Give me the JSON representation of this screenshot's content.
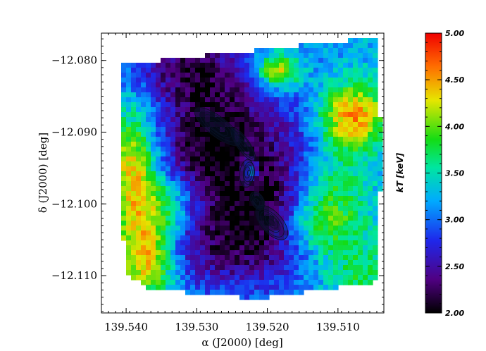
{
  "chart_data": {
    "type": "heatmap",
    "title": "",
    "xlabel": "α (J2000) [deg]",
    "ylabel": "δ (J2000) [deg]",
    "xlim": [
      139.5435,
      139.5035
    ],
    "ylim": [
      -12.1152,
      -12.0762
    ],
    "x_ticks": [
      139.54,
      139.53,
      139.52,
      139.51
    ],
    "x_tick_labels": [
      "139.540",
      "139.530",
      "139.520",
      "139.510"
    ],
    "y_ticks": [
      -12.08,
      -12.09,
      -12.1,
      -12.11
    ],
    "y_tick_labels": [
      "−12.080",
      "−12.090",
      "−12.100",
      "−12.110"
    ],
    "colorbar": {
      "label": "kT [keV]",
      "range": [
        2.0,
        5.0
      ],
      "ticks": [
        5.0,
        4.5,
        4.0,
        3.5,
        3.0,
        2.5,
        2.0
      ],
      "tick_labels": [
        "5.00",
        "4.50",
        "4.00",
        "3.50",
        "3.00",
        "2.50",
        "2.00"
      ],
      "colormap": "rainbow (black-purple-blue-cyan-green-yellow-red)"
    },
    "field_polygon": [
      [
        139.5404,
        -12.0805
      ],
      [
        139.5046,
        -12.0768
      ],
      [
        139.5039,
        -12.0913
      ],
      [
        139.5043,
        -12.1108
      ],
      [
        139.5216,
        -12.1132
      ],
      [
        139.5368,
        -12.1118
      ],
      [
        139.5402,
        -12.1095
      ],
      [
        139.5407,
        -12.0955
      ]
    ],
    "temperature_regions": [
      {
        "ra": 139.52,
        "dec": -12.095,
        "kT": 2.6,
        "sigma_ra": 0.01,
        "sigma_dec": 0.01
      },
      {
        "ra": 139.5285,
        "dec": -12.0905,
        "kT": 2.4,
        "sigma_ra": 0.0055,
        "sigma_dec": 0.009
      },
      {
        "ra": 139.519,
        "dec": -12.102,
        "kT": 2.5,
        "sigma_ra": 0.004,
        "sigma_dec": 0.005
      },
      {
        "ra": 139.533,
        "dec": -12.081,
        "kT": 2.7,
        "sigma_ra": 0.006,
        "sigma_dec": 0.003
      },
      {
        "ra": 139.528,
        "dec": -12.107,
        "kT": 2.7,
        "sigma_ra": 0.007,
        "sigma_dec": 0.004
      },
      {
        "ra": 139.539,
        "dec": -12.0955,
        "kT": 4.5,
        "sigma_ra": 0.0025,
        "sigma_dec": 0.006
      },
      {
        "ra": 139.537,
        "dec": -12.1075,
        "kT": 4.6,
        "sigma_ra": 0.003,
        "sigma_dec": 0.004
      },
      {
        "ra": 139.508,
        "dec": -12.088,
        "kT": 4.8,
        "sigma_ra": 0.0035,
        "sigma_dec": 0.0035
      },
      {
        "ra": 139.5185,
        "dec": -12.0815,
        "kT": 4.6,
        "sigma_ra": 0.0022,
        "sigma_dec": 0.0018
      },
      {
        "ra": 139.513,
        "dec": -12.103,
        "kT": 4.3,
        "sigma_ra": 0.005,
        "sigma_dec": 0.003
      },
      {
        "ra": 139.511,
        "dec": -12.097,
        "kT": 4.0,
        "sigma_ra": 0.004,
        "sigma_dec": 0.003
      },
      {
        "ra": 139.534,
        "dec": -12.1,
        "kT": 4.0,
        "sigma_ra": 0.003,
        "sigma_dec": 0.003
      },
      {
        "ra": 139.507,
        "dec": -12.1095,
        "kT": 3.8,
        "sigma_ra": 0.004,
        "sigma_dec": 0.0025
      },
      {
        "ra": 139.5225,
        "dec": -12.0955,
        "kT": 4.3,
        "sigma_ra": 0.0008,
        "sigma_dec": 0.0012
      }
    ],
    "background_kT": 3.25,
    "contours": "X-ray surface-brightness contours (black) along the central bar"
  }
}
